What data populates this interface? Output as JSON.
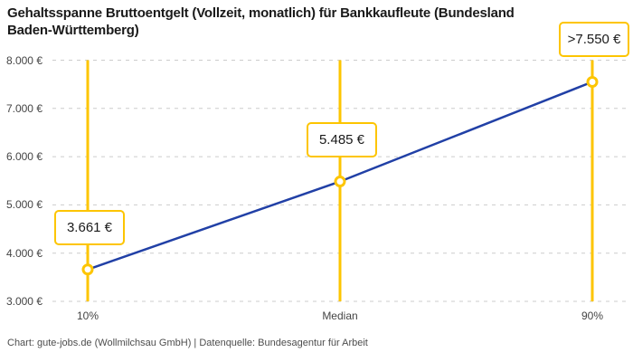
{
  "header": {
    "title_lines": [
      "Gehaltsspanne Bruttoentgelt (Vollzeit, monatlich) für Bankkaufleute (Bundesland",
      "Baden-Württemberg)"
    ]
  },
  "chart_data": {
    "type": "line",
    "title": "Gehaltsspanne Bruttoentgelt (Vollzeit, monatlich) für Bankkaufleute (Bundesland Baden-Württemberg)",
    "categories": [
      "10%",
      "Median",
      "90%"
    ],
    "values": [
      3661,
      5485,
      7550
    ],
    "point_labels": [
      "3.661 €",
      "5.485 €",
      ">7.550 €"
    ],
    "ylim": [
      3000,
      8000
    ],
    "y_tick_step": 1000,
    "y_tick_labels": [
      "3.000 €",
      "4.000 €",
      "5.000 €",
      "6.000 €",
      "7.000 €",
      "8.000 €"
    ],
    "grid": "horizontal-dashed",
    "legend": "none",
    "line_color": "#2140A6",
    "accent_color": "#FDC500",
    "marker": "circle-open"
  },
  "footer": {
    "credit": "Chart: gute-jobs.de (Wollmilchsau GmbH) | Datenquelle: Bundesagentur für Arbeit"
  }
}
